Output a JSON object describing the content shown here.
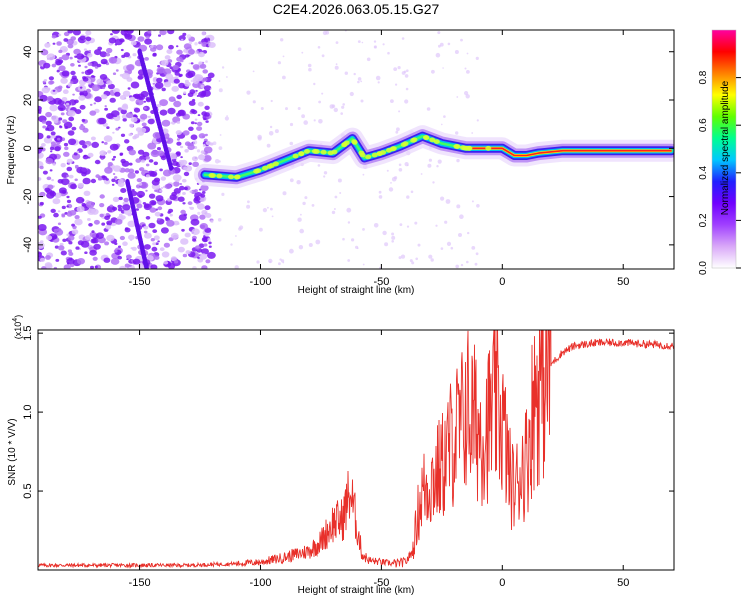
{
  "figure_title": "C2E4.2026.063.05.15.G27",
  "chart_data": [
    {
      "type": "heatmap",
      "title": "C2E4.2026.063.05.15.G27",
      "xlabel": "Height of straight line (km)",
      "ylabel": "Frequency (Hz)",
      "xlim": [
        -192,
        71
      ],
      "ylim": [
        -50,
        49
      ],
      "xticks": [
        -150,
        -100,
        -50,
        0,
        50
      ],
      "yticks": [
        -40,
        -20,
        0,
        20,
        40
      ],
      "colorbar": {
        "label": "Normalized spectral amplitude",
        "range": [
          0,
          1
        ],
        "ticks": [
          0.0,
          0.2,
          0.4,
          0.6,
          0.8
        ],
        "tick_labels": [
          "0.0",
          "0.2",
          "0.4",
          "0.6",
          "0.8"
        ],
        "colors": [
          "#ffffff",
          "#d9a8f8",
          "#a040ff",
          "#7000ff",
          "#2020ff",
          "#00c8ff",
          "#00ff90",
          "#60ff00",
          "#ffff00",
          "#ff8000",
          "#ff0000",
          "#ff00a0"
        ]
      },
      "ridge": [
        {
          "x": -123,
          "f": -11
        },
        {
          "x": -110,
          "f": -12
        },
        {
          "x": -100,
          "f": -9
        },
        {
          "x": -90,
          "f": -5
        },
        {
          "x": -80,
          "f": -1
        },
        {
          "x": -70,
          "f": -2
        },
        {
          "x": -62,
          "f": 4
        },
        {
          "x": -57,
          "f": -4
        },
        {
          "x": -50,
          "f": -2
        },
        {
          "x": -42,
          "f": 1
        },
        {
          "x": -33,
          "f": 5
        },
        {
          "x": -25,
          "f": 2
        },
        {
          "x": -15,
          "f": 0
        },
        {
          "x": -5,
          "f": 0
        },
        {
          "x": 0,
          "f": 0
        },
        {
          "x": 5,
          "f": -3
        },
        {
          "x": 10,
          "f": -3
        },
        {
          "x": 15,
          "f": -2
        },
        {
          "x": 25,
          "f": -1
        },
        {
          "x": 40,
          "f": -1
        },
        {
          "x": 55,
          "f": -1
        },
        {
          "x": 70,
          "f": -1
        }
      ],
      "streaks": [
        {
          "x_top": -150,
          "f_top": 40,
          "x_bot": -137,
          "f_bot": -8
        },
        {
          "x_top": -155,
          "f_top": -14,
          "x_bot": -147,
          "f_bot": -50
        }
      ],
      "noise_region": {
        "x_start": -192,
        "x_end": -120
      }
    },
    {
      "type": "line",
      "xlabel": "Height of straight line (km)",
      "ylabel": "SNR (10 * V/V)",
      "multiplier_label": "(x10",
      "multiplier_exponent": "4",
      "multiplier_close": ")",
      "xlim": [
        -192,
        71
      ],
      "ylim": [
        0,
        1.52
      ],
      "xticks": [
        -150,
        -100,
        -50,
        0,
        50
      ],
      "yticks": [
        0.5,
        1.0,
        1.5
      ],
      "ytick_labels": [
        "0.5",
        "1.0",
        "1.5"
      ],
      "color": "#e8302a",
      "series": [
        {
          "name": "SNR",
          "x": [
            -192,
            -160,
            -130,
            -110,
            -100,
            -90,
            -80,
            -75,
            -70,
            -66,
            -63,
            -61,
            -58,
            -55,
            -50,
            -45,
            -40,
            -37,
            -35,
            -33,
            -30,
            -25,
            -20,
            -17,
            -15,
            -12,
            -10,
            -8,
            -5,
            -3,
            0,
            3,
            5,
            8,
            10,
            12,
            14,
            16,
            18,
            20,
            25,
            30,
            35,
            40,
            50,
            60,
            71
          ],
          "y": [
            0.03,
            0.03,
            0.03,
            0.04,
            0.05,
            0.08,
            0.12,
            0.18,
            0.3,
            0.32,
            0.5,
            0.35,
            0.1,
            0.06,
            0.05,
            0.04,
            0.05,
            0.12,
            0.35,
            0.5,
            0.55,
            0.65,
            0.85,
            0.9,
            1.05,
            0.95,
            0.9,
            0.88,
            0.95,
            1.05,
            0.95,
            0.6,
            0.5,
            0.65,
            0.7,
            0.95,
            1.15,
            1.2,
            1.25,
            1.3,
            1.38,
            1.42,
            1.43,
            1.44,
            1.44,
            1.43,
            1.42
          ]
        }
      ]
    }
  ]
}
